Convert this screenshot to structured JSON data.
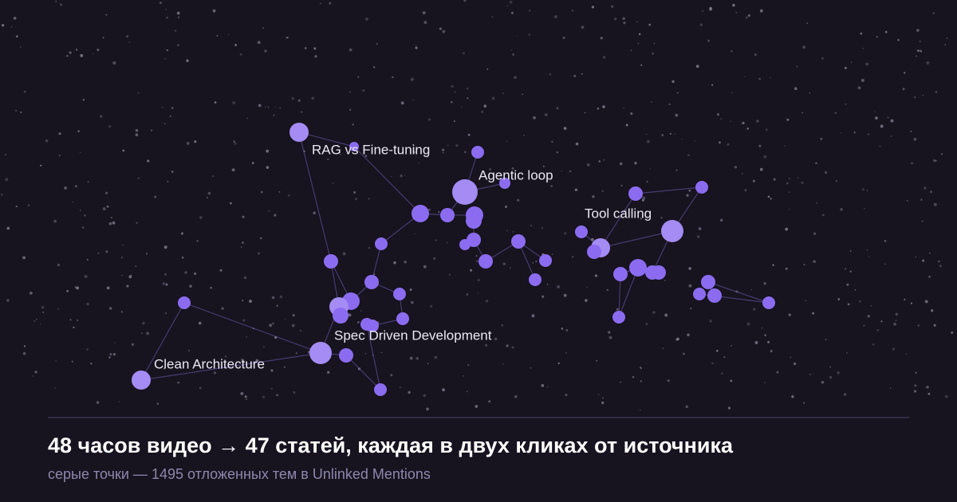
{
  "header": {
    "title": "48 часов видео → 47 статей, каждая в двух кликах от источника",
    "subtitle": "серые точки — 1495 отложенных тем в Unlinked Mentions"
  },
  "nodes": [
    {
      "label": "RAG vs Fine-tuning"
    },
    {
      "label": "Agentic loop"
    },
    {
      "label": "Tool calling"
    },
    {
      "label": "Spec Driven Development"
    },
    {
      "label": "Clean Architecture"
    }
  ]
}
